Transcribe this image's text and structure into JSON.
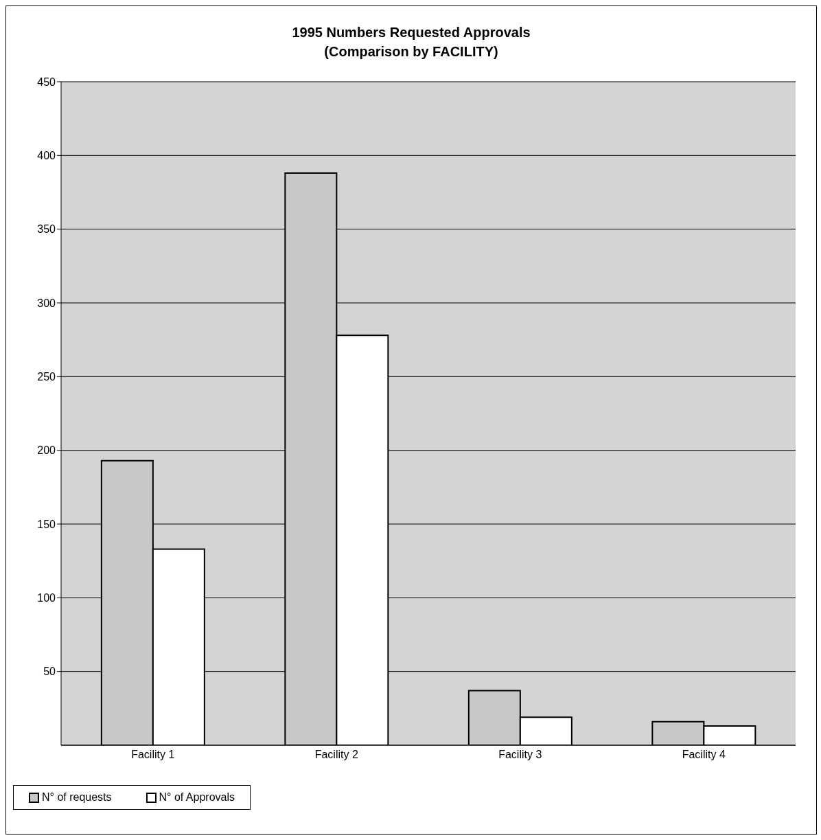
{
  "chart_data": {
    "type": "bar",
    "title": "1995  Numbers Requested Approvals",
    "subtitle": "(Comparison by FACILITY)",
    "categories": [
      "Facility 1",
      "Facility 2",
      "Facility 3",
      "Facility 4"
    ],
    "series": [
      {
        "name": "N° of requests",
        "color": "#c8c8c8",
        "values": [
          193,
          388,
          37,
          16
        ]
      },
      {
        "name": "N° of Approvals",
        "color": "#ffffff",
        "values": [
          133,
          278,
          19,
          13
        ]
      }
    ],
    "ylim": [
      0,
      450
    ],
    "yticks": [
      50,
      100,
      150,
      200,
      250,
      300,
      350,
      400,
      450
    ],
    "grid": "y",
    "legend": "bottom"
  }
}
